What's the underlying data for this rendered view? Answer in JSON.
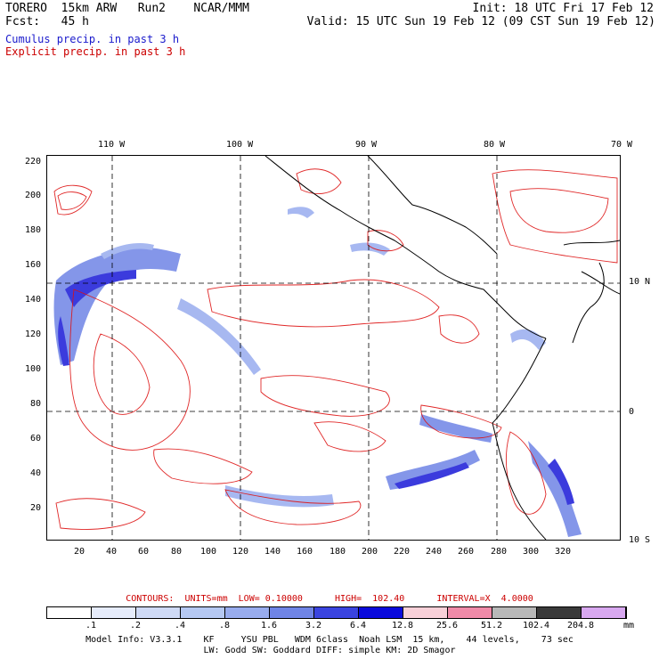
{
  "header": {
    "left1": "TORERO  15km ARW   Run2    NCAR/MMM",
    "left2": "Fcst:   45 h",
    "right1": "Init: 18 UTC Fri 17 Feb 12",
    "right2": "Valid: 15 UTC Sun 19 Feb 12 (09 CST Sun 19 Feb 12)",
    "cumulus": "Cumulus precip. in past 3 h",
    "explicit": "Explicit precip. in past 3 h",
    "cumulus_color": "#1a1acc",
    "explicit_color": "#cc0000"
  },
  "map": {
    "lon_labels": [
      "110 W",
      "100 W",
      "90 W",
      "80 W",
      "70 W"
    ],
    "lat_labels": [
      "10 N",
      "0",
      "10 S"
    ],
    "y_ticks": [
      "220",
      "200",
      "180",
      "160",
      "140",
      "120",
      "100",
      "80",
      "60",
      "40",
      "20"
    ],
    "x_ticks": [
      "20",
      "40",
      "60",
      "80",
      "100",
      "120",
      "140",
      "160",
      "180",
      "200",
      "220",
      "240",
      "260",
      "280",
      "300",
      "320"
    ]
  },
  "contours_line": "CONTOURS:  UNITS=mm  LOW= 0.10000      HIGH=  102.40      INTERVAL=X  4.0000",
  "colorbar": {
    "labels": [
      ".1",
      ".2",
      ".4",
      ".8",
      "1.6",
      "3.2",
      "6.4",
      "12.8",
      "25.6",
      "51.2",
      "102.4",
      "204.8"
    ],
    "unit": "mm",
    "colors": [
      "#ffffff",
      "#e6ecfb",
      "#cfdaf6",
      "#b5c8f2",
      "#98acee",
      "#6f84e6",
      "#3a44e0",
      "#0a0adc",
      "#f8d0d8",
      "#f08aa8",
      "#b8b8b8",
      "#3a3a3a",
      "#d8a8f0"
    ]
  },
  "footer": {
    "line1": "Model Info: V3.3.1    KF     YSU PBL   WDM 6class  Noah LSM  15 km,    44 levels,    73 sec",
    "line2": "LW: Godd SW: Goddard DIFF: simple KM: 2D Smagor"
  }
}
